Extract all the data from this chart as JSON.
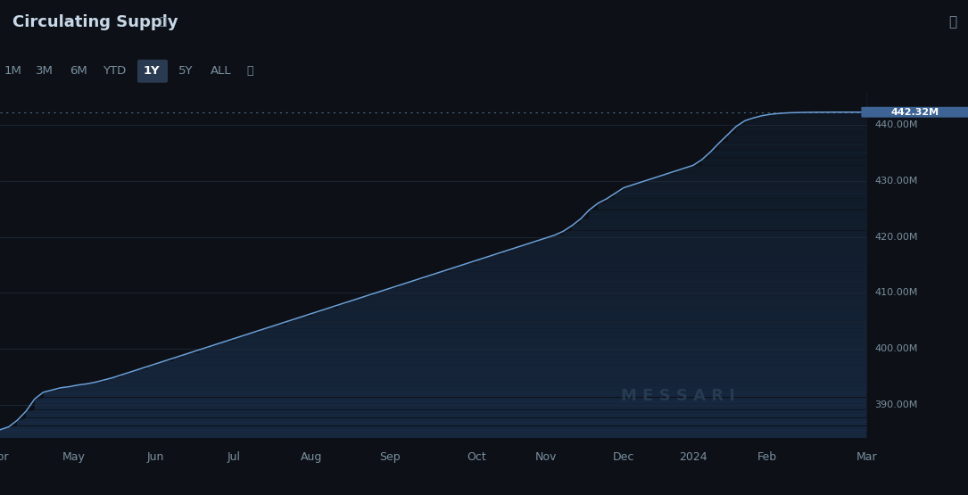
{
  "title": "Circulating Supply",
  "background_color": "#0d1117",
  "plot_bg_color": "#0d1117",
  "line_color": "#6a9fd8",
  "fill_color_top": "#1e3a5f",
  "fill_color_bottom": "#0d1117",
  "grid_color": "#1e2a3a",
  "dotted_line_color": "#4a6a8a",
  "text_color": "#7a8fa0",
  "title_color": "#c8d8e8",
  "active_nav_bg": "#2a3a50",
  "messari_color": "#2a3f55",
  "x_labels": [
    "Apr",
    "May",
    "Jun",
    "Jul",
    "Aug",
    "Sep",
    "Oct",
    "Nov",
    "Dec",
    "2024",
    "Feb",
    "Mar"
  ],
  "x_positions": [
    0,
    8.5,
    18,
    27,
    36,
    45,
    55,
    63,
    72,
    80,
    88.5,
    100
  ],
  "y_label_vals": [
    390,
    400,
    410,
    420,
    430,
    440
  ],
  "y_label_texts": [
    "390.00M",
    "400.00M",
    "410.00M",
    "420.00M",
    "430.00M",
    "440.00M"
  ],
  "y_min": 384,
  "y_max": 446,
  "current_label": "442.32M",
  "current_val": 442.32,
  "nav_items": [
    "1M",
    "3M",
    "6M",
    "YTD",
    "1Y",
    "5Y",
    "ALL"
  ],
  "active_nav": "1Y",
  "data_x": [
    0,
    1,
    2,
    3,
    4,
    5,
    6,
    7,
    8,
    9,
    10,
    11,
    12,
    13,
    14,
    15,
    16,
    17,
    18,
    19,
    20,
    21,
    22,
    23,
    24,
    25,
    26,
    27,
    28,
    29,
    30,
    31,
    32,
    33,
    34,
    35,
    36,
    37,
    38,
    39,
    40,
    41,
    42,
    43,
    44,
    45,
    46,
    47,
    48,
    49,
    50,
    51,
    52,
    53,
    54,
    55,
    56,
    57,
    58,
    59,
    60,
    61,
    62,
    63,
    64,
    65,
    66,
    67,
    68,
    69,
    70,
    71,
    72,
    73,
    74,
    75,
    76,
    77,
    78,
    79,
    80,
    81,
    82,
    83,
    84,
    85,
    86,
    87,
    88,
    89,
    90,
    91,
    92,
    93,
    94,
    95,
    96,
    97,
    98,
    99,
    100
  ],
  "data_y": [
    385.5,
    386.0,
    387.2,
    388.8,
    391.0,
    392.2,
    392.6,
    393.0,
    393.2,
    393.5,
    393.7,
    394.0,
    394.4,
    394.8,
    395.3,
    395.8,
    396.3,
    396.8,
    397.3,
    397.8,
    398.3,
    398.8,
    399.3,
    399.8,
    400.3,
    400.8,
    401.3,
    401.8,
    402.3,
    402.8,
    403.3,
    403.8,
    404.3,
    404.8,
    405.3,
    405.8,
    406.3,
    406.8,
    407.3,
    407.8,
    408.3,
    408.8,
    409.3,
    409.8,
    410.3,
    410.8,
    411.3,
    411.8,
    412.3,
    412.8,
    413.3,
    413.8,
    414.3,
    414.8,
    415.3,
    415.8,
    416.3,
    416.8,
    417.3,
    417.8,
    418.3,
    418.8,
    419.3,
    419.8,
    420.3,
    421.0,
    422.0,
    423.2,
    424.8,
    426.0,
    426.8,
    427.8,
    428.8,
    429.3,
    429.8,
    430.3,
    430.8,
    431.3,
    431.8,
    432.3,
    432.8,
    433.8,
    435.2,
    436.8,
    438.3,
    439.8,
    440.8,
    441.3,
    441.7,
    441.95,
    442.1,
    442.2,
    442.25,
    442.28,
    442.3,
    442.31,
    442.32,
    442.32,
    442.32,
    442.32,
    442.32
  ]
}
